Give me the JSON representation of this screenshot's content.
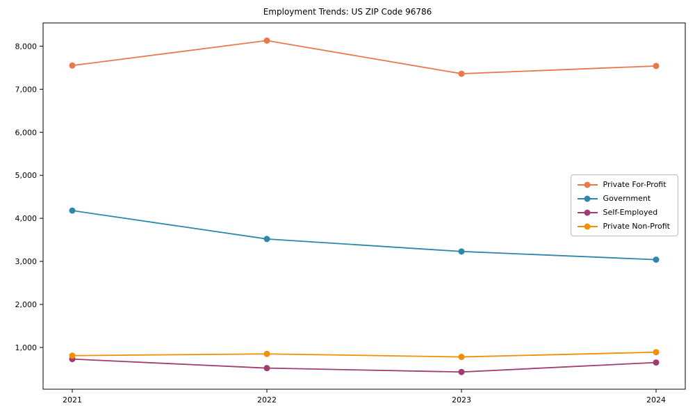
{
  "title": "Employment Trends: US ZIP Code 96786",
  "chart_data": {
    "type": "line",
    "title": "Employment Trends: US ZIP Code 96786",
    "xlabel": "",
    "ylabel": "",
    "x": [
      2021,
      2022,
      2023,
      2024
    ],
    "x_tick_labels": [
      "2021",
      "2022",
      "2023",
      "2024"
    ],
    "y_ticks": [
      1000,
      2000,
      3000,
      4000,
      5000,
      6000,
      7000,
      8000
    ],
    "y_tick_labels": [
      "1,000",
      "2,000",
      "3,000",
      "4,000",
      "5,000",
      "6,000",
      "7,000",
      "8,000"
    ],
    "xlim": [
      2020.85,
      2024.15
    ],
    "ylim": [
      30,
      8540
    ],
    "grid": false,
    "legend_position": "center right",
    "series": [
      {
        "name": "Private For-Profit",
        "color": "#E8794D",
        "values": [
          7550,
          8130,
          7360,
          7540
        ]
      },
      {
        "name": "Government",
        "color": "#2E86AB",
        "values": [
          4180,
          3520,
          3230,
          3040
        ]
      },
      {
        "name": "Self-Employed",
        "color": "#A23B72",
        "values": [
          730,
          520,
          430,
          650
        ]
      },
      {
        "name": "Private Non-Profit",
        "color": "#F18F01",
        "values": [
          810,
          850,
          780,
          890
        ]
      }
    ]
  }
}
